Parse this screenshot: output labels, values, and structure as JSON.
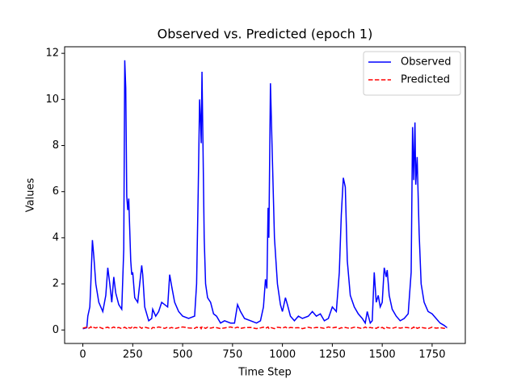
{
  "chart_data": {
    "type": "line",
    "title": "Observed vs. Predicted (epoch 1)",
    "x_label": "Time Step",
    "y_label": "Values",
    "x": [
      0,
      20,
      25,
      35,
      40,
      48,
      55,
      65,
      80,
      100,
      115,
      125,
      135,
      145,
      155,
      165,
      180,
      195,
      205,
      210,
      215,
      220,
      225,
      230,
      240,
      245,
      250,
      260,
      275,
      285,
      295,
      300,
      310,
      330,
      345,
      350,
      365,
      380,
      395,
      410,
      425,
      435,
      445,
      460,
      480,
      500,
      530,
      560,
      570,
      578,
      585,
      590,
      593,
      597,
      602,
      608,
      615,
      625,
      640,
      655,
      670,
      690,
      710,
      740,
      760,
      775,
      790,
      810,
      840,
      870,
      890,
      905,
      915,
      922,
      928,
      932,
      940,
      948,
      960,
      975,
      990,
      1000,
      1015,
      1025,
      1040,
      1060,
      1080,
      1100,
      1130,
      1150,
      1170,
      1190,
      1210,
      1230,
      1250,
      1270,
      1285,
      1295,
      1305,
      1315,
      1325,
      1340,
      1360,
      1380,
      1400,
      1415,
      1425,
      1440,
      1450,
      1460,
      1470,
      1480,
      1490,
      1500,
      1510,
      1520,
      1525,
      1535,
      1550,
      1570,
      1590,
      1610,
      1630,
      1645,
      1652,
      1658,
      1664,
      1668,
      1675,
      1685,
      1695,
      1710,
      1730,
      1750,
      1770,
      1790,
      1810,
      1825
    ],
    "series": [
      {
        "name": "Observed",
        "color": "#0000ff",
        "linestyle": "solid",
        "values": [
          0.05,
          0.1,
          0.6,
          1.0,
          2.0,
          3.9,
          3.2,
          2.0,
          1.2,
          0.8,
          1.5,
          2.7,
          2.0,
          1.2,
          2.3,
          1.6,
          1.1,
          0.9,
          3.5,
          11.7,
          10.5,
          5.8,
          5.2,
          5.7,
          3.0,
          2.4,
          2.5,
          1.4,
          1.2,
          2.0,
          2.8,
          2.4,
          1.0,
          0.4,
          0.5,
          0.9,
          0.6,
          0.8,
          1.2,
          1.1,
          1.0,
          2.4,
          1.9,
          1.2,
          0.8,
          0.6,
          0.5,
          0.6,
          2.0,
          6.0,
          10.0,
          9.0,
          8.1,
          11.2,
          8.0,
          4.0,
          2.0,
          1.4,
          1.2,
          0.7,
          0.6,
          0.3,
          0.4,
          0.3,
          0.3,
          1.1,
          0.8,
          0.5,
          0.4,
          0.3,
          0.4,
          1.0,
          2.2,
          1.8,
          5.3,
          4.0,
          10.7,
          8.0,
          4.0,
          2.0,
          1.1,
          0.8,
          1.4,
          1.1,
          0.6,
          0.4,
          0.6,
          0.5,
          0.6,
          0.8,
          0.6,
          0.7,
          0.4,
          0.5,
          1.0,
          0.8,
          2.5,
          5.0,
          6.6,
          6.2,
          3.0,
          1.5,
          1.0,
          0.7,
          0.5,
          0.3,
          0.8,
          0.3,
          0.4,
          2.5,
          1.2,
          1.5,
          1.0,
          1.2,
          2.7,
          2.3,
          2.6,
          1.5,
          0.9,
          0.6,
          0.4,
          0.5,
          0.7,
          2.5,
          8.8,
          6.5,
          9.0,
          6.3,
          7.5,
          4.2,
          2.0,
          1.2,
          0.8,
          0.7,
          0.5,
          0.3,
          0.2,
          0.1
        ]
      },
      {
        "name": "Predicted",
        "color": "#ff0000",
        "linestyle": "dashed",
        "values": [
          0.08,
          0.12,
          0.06,
          0.1,
          0.14,
          0.07,
          0.11,
          0.09,
          0.13,
          0.06,
          0.1,
          0.12,
          0.07,
          0.09,
          0.13,
          0.08,
          0.11,
          0.06,
          0.1,
          0.12,
          0.09,
          0.07,
          0.13,
          0.1,
          0.08,
          0.12,
          0.06,
          0.11,
          0.09,
          0.13,
          0.07,
          0.1,
          0.12,
          0.08,
          0.06,
          0.11,
          0.09,
          0.13,
          0.1,
          0.07,
          0.12,
          0.08,
          0.11,
          0.06,
          0.1,
          0.13,
          0.09,
          0.07,
          0.12,
          0.1,
          0.08,
          0.11,
          0.06,
          0.13,
          0.09,
          0.1,
          0.07,
          0.12,
          0.08,
          0.11,
          0.1,
          0.06,
          0.09,
          0.13,
          0.08,
          0.12,
          0.07,
          0.1,
          0.11,
          0.06,
          0.09,
          0.12,
          0.08,
          0.1,
          0.13,
          0.07,
          0.11,
          0.09,
          0.06,
          0.12,
          0.1,
          0.08,
          0.13,
          0.07,
          0.11,
          0.09,
          0.1,
          0.06,
          0.12,
          0.08,
          0.11,
          0.1,
          0.07,
          0.13,
          0.09,
          0.12,
          0.06,
          0.1,
          0.08,
          0.11,
          0.09,
          0.07,
          0.12,
          0.1,
          0.06,
          0.13,
          0.08,
          0.11,
          0.09,
          0.1,
          0.07,
          0.12,
          0.08,
          0.11,
          0.06,
          0.13,
          0.1,
          0.09,
          0.07,
          0.12,
          0.08,
          0.11,
          0.1,
          0.06,
          0.09,
          0.13,
          0.08,
          0.12,
          0.07,
          0.1,
          0.11,
          0.09,
          0.06,
          0.12,
          0.08,
          0.1,
          0.07,
          0.09
        ]
      }
    ],
    "xlim": [
      -91.25,
      1916.25
    ],
    "xticks": [
      0,
      250,
      500,
      750,
      1000,
      1250,
      1500,
      1750
    ],
    "ylim": [
      -0.585,
      12.285
    ],
    "yticks": [
      0,
      2,
      4,
      6,
      8,
      10,
      12
    ],
    "grid": false,
    "legend": "upper right"
  }
}
